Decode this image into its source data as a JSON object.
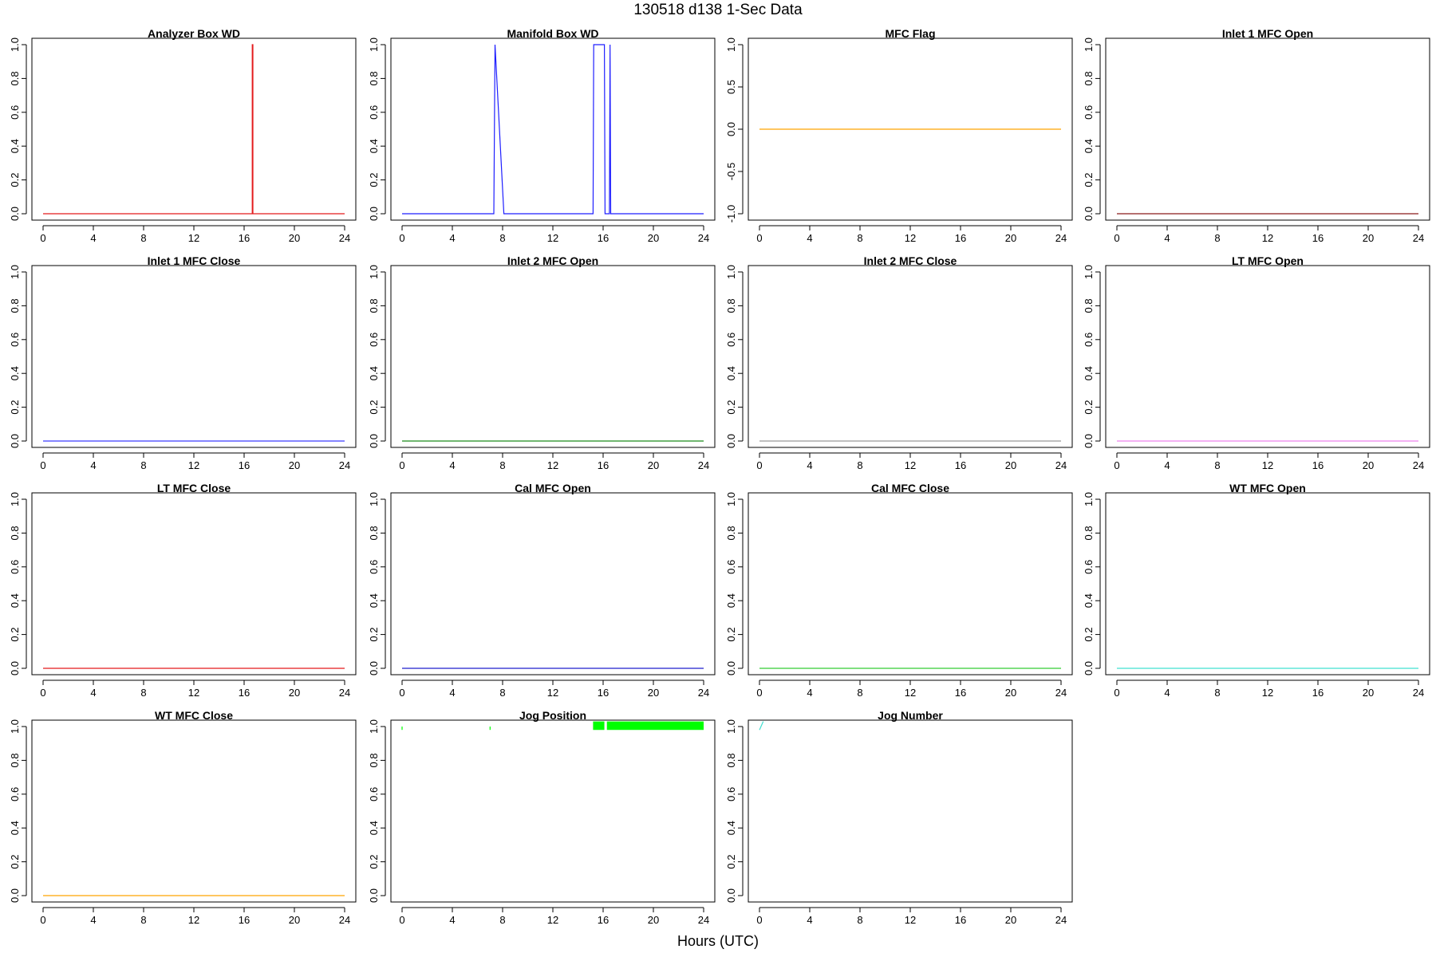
{
  "page": {
    "title": "130518   d138   1-Sec Data",
    "x_axis_label": "Hours (UTC)"
  },
  "chart_data": [
    {
      "type": "line",
      "title": "Analyzer Box WD",
      "xlim": [
        0,
        24
      ],
      "ylim": [
        0,
        1
      ],
      "x_ticks": [
        "0",
        "4",
        "8",
        "12",
        "16",
        "20",
        "24"
      ],
      "y_ticks": [
        "0.0",
        "0.2",
        "0.4",
        "0.6",
        "0.8",
        "1.0"
      ],
      "color": "#e31a1c",
      "series": [
        {
          "x": [
            0,
            16.65,
            16.65,
            16.7,
            16.7,
            24
          ],
          "y": [
            0,
            0,
            1,
            1,
            0,
            0
          ]
        }
      ]
    },
    {
      "type": "line",
      "title": "Manifold Box WD",
      "xlim": [
        0,
        24
      ],
      "ylim": [
        0,
        1
      ],
      "x_ticks": [
        "0",
        "4",
        "8",
        "12",
        "16",
        "20",
        "24"
      ],
      "y_ticks": [
        "0.0",
        "0.2",
        "0.4",
        "0.6",
        "0.8",
        "1.0"
      ],
      "color": "#1f1fff",
      "series": [
        {
          "x": [
            0,
            7.3,
            7.4,
            8.1,
            15.2,
            15.25,
            16.1,
            16.15,
            16.5,
            16.55,
            16.6,
            24
          ],
          "y": [
            0,
            0,
            1,
            0,
            0,
            1,
            1,
            0,
            0,
            1,
            0,
            0
          ]
        }
      ]
    },
    {
      "type": "line",
      "title": "MFC Flag",
      "xlim": [
        0,
        24
      ],
      "ylim": [
        -1,
        1
      ],
      "x_ticks": [
        "0",
        "4",
        "8",
        "12",
        "16",
        "20",
        "24"
      ],
      "y_ticks": [
        "-1.0",
        "-0.5",
        "0.0",
        "0.5",
        "1.0"
      ],
      "color": "#ffa500",
      "series": [
        {
          "x": [
            0,
            24
          ],
          "y": [
            0,
            0
          ]
        }
      ]
    },
    {
      "type": "line",
      "title": "Inlet 1 MFC Open",
      "xlim": [
        0,
        24
      ],
      "ylim": [
        0,
        1
      ],
      "x_ticks": [
        "0",
        "4",
        "8",
        "12",
        "16",
        "20",
        "24"
      ],
      "y_ticks": [
        "0.0",
        "0.2",
        "0.4",
        "0.6",
        "0.8",
        "1.0"
      ],
      "color": "#8b1a1a",
      "series": [
        {
          "x": [
            0,
            24
          ],
          "y": [
            0,
            0
          ]
        }
      ]
    },
    {
      "type": "line",
      "title": "Inlet 1 MFC Close",
      "xlim": [
        0,
        24
      ],
      "ylim": [
        0,
        1
      ],
      "x_ticks": [
        "0",
        "4",
        "8",
        "12",
        "16",
        "20",
        "24"
      ],
      "y_ticks": [
        "0.0",
        "0.2",
        "0.4",
        "0.6",
        "0.8",
        "1.0"
      ],
      "color": "#3a3aff",
      "series": [
        {
          "x": [
            0,
            24
          ],
          "y": [
            0,
            0
          ]
        }
      ]
    },
    {
      "type": "line",
      "title": "Inlet 2 MFC Open",
      "xlim": [
        0,
        24
      ],
      "ylim": [
        0,
        1
      ],
      "x_ticks": [
        "0",
        "4",
        "8",
        "12",
        "16",
        "20",
        "24"
      ],
      "y_ticks": [
        "0.0",
        "0.2",
        "0.4",
        "0.6",
        "0.8",
        "1.0"
      ],
      "color": "#1a8b1a",
      "series": [
        {
          "x": [
            0,
            24
          ],
          "y": [
            0,
            0
          ]
        }
      ]
    },
    {
      "type": "line",
      "title": "Inlet 2 MFC Close",
      "xlim": [
        0,
        24
      ],
      "ylim": [
        0,
        1
      ],
      "x_ticks": [
        "0",
        "4",
        "8",
        "12",
        "16",
        "20",
        "24"
      ],
      "y_ticks": [
        "0.0",
        "0.2",
        "0.4",
        "0.6",
        "0.8",
        "1.0"
      ],
      "color": "#999999",
      "series": [
        {
          "x": [
            0,
            24
          ],
          "y": [
            0,
            0
          ]
        }
      ]
    },
    {
      "type": "line",
      "title": "LT MFC Open",
      "xlim": [
        0,
        24
      ],
      "ylim": [
        0,
        1
      ],
      "x_ticks": [
        "0",
        "4",
        "8",
        "12",
        "16",
        "20",
        "24"
      ],
      "y_ticks": [
        "0.0",
        "0.2",
        "0.4",
        "0.6",
        "0.8",
        "1.0"
      ],
      "color": "#ee82ee",
      "series": [
        {
          "x": [
            0,
            24
          ],
          "y": [
            0,
            0
          ]
        }
      ]
    },
    {
      "type": "line",
      "title": "LT MFC Close",
      "xlim": [
        0,
        24
      ],
      "ylim": [
        0,
        1
      ],
      "x_ticks": [
        "0",
        "4",
        "8",
        "12",
        "16",
        "20",
        "24"
      ],
      "y_ticks": [
        "0.0",
        "0.2",
        "0.4",
        "0.6",
        "0.8",
        "1.0"
      ],
      "color": "#e31a1c",
      "series": [
        {
          "x": [
            0,
            24
          ],
          "y": [
            0,
            0
          ]
        }
      ]
    },
    {
      "type": "line",
      "title": "Cal MFC Open",
      "xlim": [
        0,
        24
      ],
      "ylim": [
        0,
        1
      ],
      "x_ticks": [
        "0",
        "4",
        "8",
        "12",
        "16",
        "20",
        "24"
      ],
      "y_ticks": [
        "0.0",
        "0.2",
        "0.4",
        "0.6",
        "0.8",
        "1.0"
      ],
      "color": "#1f1fcc",
      "series": [
        {
          "x": [
            0,
            24
          ],
          "y": [
            0,
            0
          ]
        }
      ]
    },
    {
      "type": "line",
      "title": "Cal MFC Close",
      "xlim": [
        0,
        24
      ],
      "ylim": [
        0,
        1
      ],
      "x_ticks": [
        "0",
        "4",
        "8",
        "12",
        "16",
        "20",
        "24"
      ],
      "y_ticks": [
        "0.0",
        "0.2",
        "0.4",
        "0.6",
        "0.8",
        "1.0"
      ],
      "color": "#33cc33",
      "series": [
        {
          "x": [
            0,
            24
          ],
          "y": [
            0,
            0
          ]
        }
      ]
    },
    {
      "type": "line",
      "title": "WT MFC Open",
      "xlim": [
        0,
        24
      ],
      "ylim": [
        0,
        1
      ],
      "x_ticks": [
        "0",
        "4",
        "8",
        "12",
        "16",
        "20",
        "24"
      ],
      "y_ticks": [
        "0.0",
        "0.2",
        "0.4",
        "0.6",
        "0.8",
        "1.0"
      ],
      "color": "#40e0d0",
      "series": [
        {
          "x": [
            0,
            24
          ],
          "y": [
            0,
            0
          ]
        }
      ]
    },
    {
      "type": "line",
      "title": "WT MFC Close",
      "xlim": [
        0,
        24
      ],
      "ylim": [
        0,
        1
      ],
      "x_ticks": [
        "0",
        "4",
        "8",
        "12",
        "16",
        "20",
        "24"
      ],
      "y_ticks": [
        "0.0",
        "0.2",
        "0.4",
        "0.6",
        "0.8",
        "1.0"
      ],
      "color": "#ffa500",
      "series": [
        {
          "x": [
            0,
            24
          ],
          "y": [
            0,
            0
          ]
        }
      ]
    },
    {
      "type": "line",
      "title": "Jog Position",
      "xlim": [
        0,
        24
      ],
      "ylim": [
        0,
        1
      ],
      "x_ticks": [
        "0",
        "4",
        "8",
        "12",
        "16",
        "20",
        "24"
      ],
      "y_ticks": [
        "0.0",
        "0.2",
        "0.4",
        "0.6",
        "0.8",
        "1.0"
      ],
      "color": "#00ff00",
      "series": [
        {
          "x": [
            0,
            0
          ],
          "y": [
            1,
            0.98
          ]
        },
        {
          "x": [
            7,
            7
          ],
          "y": [
            1,
            0.98
          ]
        }
      ],
      "bands": [
        {
          "x0": 15.2,
          "x1": 16.1,
          "y0": 0.98,
          "y1": 1.03
        },
        {
          "x0": 16.3,
          "x1": 24.0,
          "y0": 0.98,
          "y1": 1.03
        }
      ]
    },
    {
      "type": "line",
      "title": "Jog Number",
      "xlim": [
        0,
        24
      ],
      "ylim": [
        0,
        1
      ],
      "x_ticks": [
        "0",
        "4",
        "8",
        "12",
        "16",
        "20",
        "24"
      ],
      "y_ticks": [
        "0.0",
        "0.2",
        "0.4",
        "0.6",
        "0.8",
        "1.0"
      ],
      "color": "#40e0d0",
      "series": [
        {
          "x": [
            0,
            0.3
          ],
          "y": [
            0.98,
            1.03
          ]
        }
      ]
    }
  ]
}
